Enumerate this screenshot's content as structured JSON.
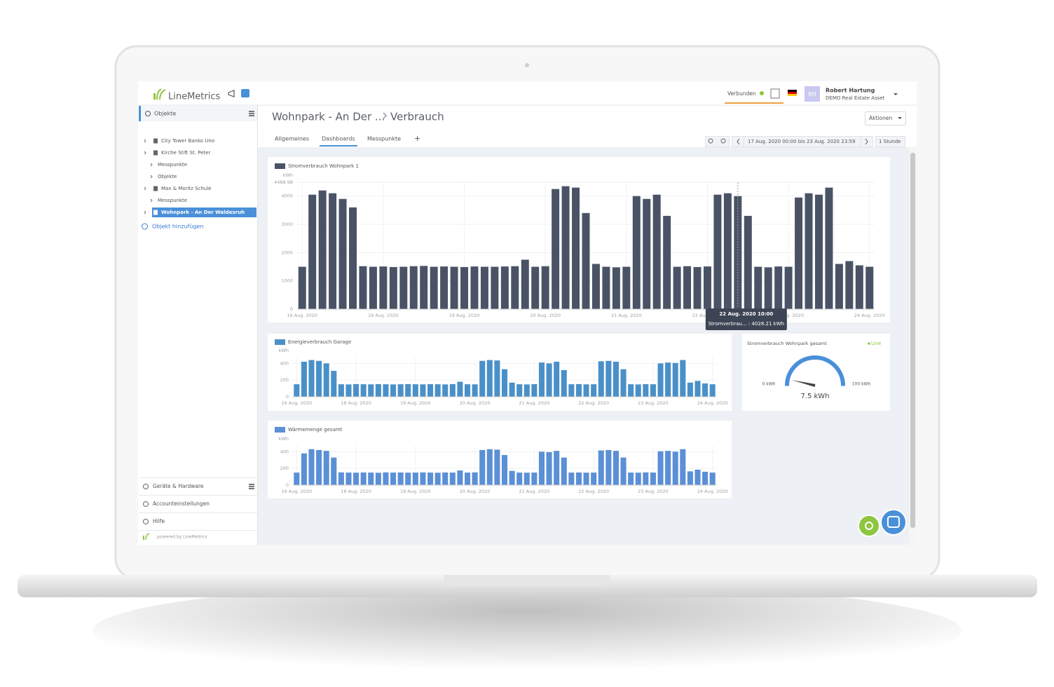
{
  "header": {
    "logo": "LineMetrics",
    "status": "Verbunden",
    "avatar": "RH",
    "user": "Robert Hartung",
    "account": "DEMO Real Estate Asset"
  },
  "sidebar": {
    "title": "Objekte",
    "tree": [
      "City Tower Banko Uno",
      "Kirche Stift St. Peter",
      "Messpunkte",
      "Objekte",
      "Max & Moritz Schule",
      "Messpunkte",
      "Wohnpark - An Der Waldesruh"
    ],
    "add": "Objekt hinzufügen",
    "footer": [
      "Geräte & Hardware",
      "Accounteinstellungen",
      "Hilfe"
    ],
    "powered": "powered by LineMetrics"
  },
  "page": {
    "breadcrumb": [
      "Wohnpark - An Der ...",
      "Verbrauch"
    ],
    "actions": "Aktionen",
    "tabs": [
      "Allgemeines",
      "Dashboards",
      "Messpunkte",
      "+"
    ],
    "range": "17 Aug. 2020 00:00 bis 23 Aug. 2020 23:59",
    "interval": "1 Stunde"
  },
  "chart_data": [
    {
      "type": "bar",
      "y_label": "kWh",
      "categories": [
        "16 Aug. 2020",
        null,
        null,
        null,
        null,
        null,
        null,
        null,
        "18 Aug. 2020",
        null,
        null,
        null,
        null,
        null,
        null,
        null,
        "19 Aug. 2020",
        null,
        null,
        null,
        null,
        null,
        null,
        null,
        "20 Aug. 2020",
        null,
        null,
        null,
        null,
        null,
        null,
        null,
        "21 Aug. 2020",
        null,
        null,
        null,
        null,
        null,
        null,
        null,
        "22 Aug. 2020",
        null,
        null,
        null,
        null,
        null,
        null,
        null,
        "23 Aug. 2020",
        null,
        null,
        null,
        null,
        null,
        null,
        null,
        "24 Aug. 2020"
      ],
      "series": [
        {
          "name": "Stromverbrauch Wohnpark 1",
          "color": "#4a5366",
          "values": [
            1500,
            4050,
            4200,
            4100,
            3900,
            3600,
            1520,
            1500,
            1510,
            1490,
            1500,
            1520,
            1530,
            1500,
            1510,
            1500,
            1490,
            1510,
            1500,
            1500,
            1510,
            1520,
            1750,
            1500,
            1520,
            4250,
            4350,
            4300,
            3400,
            1600,
            1500,
            1480,
            1500,
            4000,
            3900,
            4050,
            3300,
            1500,
            1520,
            1490,
            1510,
            4050,
            4100,
            4000,
            3300,
            1500,
            1480,
            1510,
            1500,
            3950,
            4100,
            4050,
            4300,
            1600,
            1700,
            1550,
            1500
          ]
        }
      ],
      "ylim": [
        0,
        4488.98
      ],
      "yticks": [
        0,
        1000,
        2000,
        3000,
        4000,
        4488.98
      ],
      "grid": true,
      "tooltip": {
        "title": "22 Aug. 2020 10:00",
        "text": "Stromverbrau... : 4028.21 kWh"
      }
    },
    {
      "type": "bar",
      "y_label": "kWh",
      "categories": [
        "16 Aug. 2020",
        null,
        null,
        null,
        null,
        null,
        null,
        null,
        "18 Aug. 2020",
        null,
        null,
        null,
        null,
        null,
        null,
        null,
        "19 Aug. 2020",
        null,
        null,
        null,
        null,
        null,
        null,
        null,
        "20 Aug. 2020",
        null,
        null,
        null,
        null,
        null,
        null,
        null,
        "21 Aug. 2020",
        null,
        null,
        null,
        null,
        null,
        null,
        null,
        "22 Aug. 2020",
        null,
        null,
        null,
        null,
        null,
        null,
        null,
        "23 Aug. 2020",
        null,
        null,
        null,
        null,
        null,
        null,
        null,
        "24 Aug. 2020"
      ],
      "series": [
        {
          "name": "Energieverbrauch Garage",
          "color": "#4a90c8",
          "values": [
            150,
            420,
            440,
            430,
            400,
            310,
            150,
            148,
            152,
            150,
            149,
            151,
            150,
            148,
            150,
            152,
            150,
            149,
            151,
            150,
            148,
            152,
            180,
            150,
            149,
            430,
            440,
            435,
            330,
            170,
            150,
            148,
            151,
            410,
            400,
            420,
            320,
            150,
            152,
            149,
            150,
            425,
            430,
            420,
            330,
            150,
            148,
            151,
            150,
            400,
            410,
            405,
            440,
            170,
            190,
            160,
            150
          ]
        }
      ],
      "ylim": [
        0,
        470
      ],
      "yticks": [
        0,
        200,
        400
      ],
      "grid": true
    },
    {
      "type": "bar",
      "y_label": "kWh",
      "categories": [
        "16 Aug. 2020",
        null,
        null,
        null,
        null,
        null,
        null,
        null,
        "18 Aug. 2020",
        null,
        null,
        null,
        null,
        null,
        null,
        null,
        "19 Aug. 2020",
        null,
        null,
        null,
        null,
        null,
        null,
        null,
        "20 Aug. 2020",
        null,
        null,
        null,
        null,
        null,
        null,
        null,
        "21 Aug. 2020",
        null,
        null,
        null,
        null,
        null,
        null,
        null,
        "22 Aug. 2020",
        null,
        null,
        null,
        null,
        null,
        null,
        null,
        "23 Aug. 2020",
        null,
        null,
        null,
        null,
        null,
        null,
        null,
        "24 Aug. 2020"
      ],
      "series": [
        {
          "name": "Wärmemenge gesamt",
          "color": "#5b8fd6",
          "values": [
            150,
            380,
            430,
            420,
            410,
            330,
            152,
            150,
            149,
            151,
            150,
            148,
            152,
            150,
            151,
            149,
            150,
            152,
            150,
            148,
            151,
            150,
            175,
            150,
            152,
            420,
            430,
            425,
            360,
            170,
            150,
            149,
            150,
            400,
            395,
            410,
            330,
            150,
            151,
            149,
            150,
            415,
            420,
            410,
            330,
            150,
            149,
            152,
            150,
            405,
            410,
            400,
            430,
            165,
            185,
            160,
            150
          ]
        }
      ],
      "ylim": [
        0,
        470
      ],
      "yticks": [
        0,
        200,
        400
      ],
      "grid": true
    },
    {
      "type": "gauge",
      "title": "Stromverbrauch Wohnpark gesamt",
      "status": "Live",
      "values": [
        7.5
      ],
      "value_labels": [
        "7.5 kWh"
      ],
      "color": "#4a90d9",
      "ylim": [
        0,
        100
      ],
      "yticks": [
        {
          "value": 0,
          "label": "0 kWh"
        },
        {
          "value": 100,
          "label": "100 kWh"
        }
      ]
    }
  ]
}
